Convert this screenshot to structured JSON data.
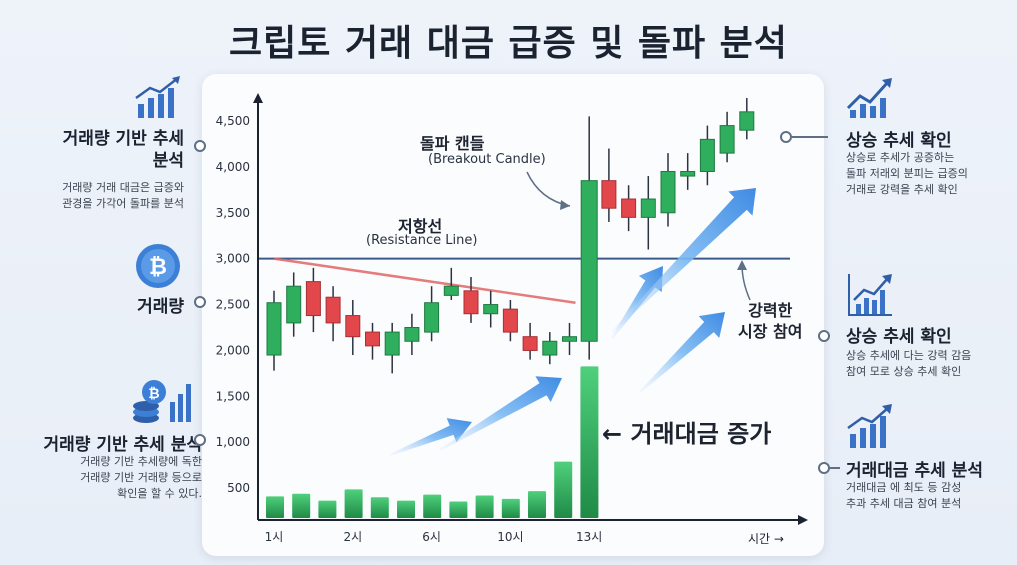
{
  "title": "크립토 거래 대금 급증 및 돌파 분석",
  "left": [
    {
      "title": "거래량 기반 추세\n분석",
      "desc": "거래량 거래 대금은 급증와\n관경을 가각어 돌파를 분석",
      "icon": "bar-chart-up-icon"
    },
    {
      "title": "거래량",
      "desc": "",
      "icon": "bitcoin-coin-icon"
    },
    {
      "title": "거래량 기반 추세 분석",
      "desc": "거래량 기반 추세량에 독한\n거래량 기반 거래량 등으로\n확인을 할 수 있다.",
      "icon": "coins-chart-icon"
    }
  ],
  "right": [
    {
      "title": "상승 추세 확인",
      "desc": "상승로 추세가 공증하는\n돌파 저래외 분피는 급증의\n거래로 강력을 추세 확인",
      "icon": "line-chart-up-icon"
    },
    {
      "title": "상승 추세 확인",
      "desc": "상승 추세에 다는 강력 감음\n참여 모로 상승 추세 확인",
      "icon": "line-chart-up-icon"
    },
    {
      "title": "거래대금 추세 분석",
      "desc": "거래대금 에 최도 등 감성\n추과 추세 대금 참여 분석",
      "icon": "bar-chart-up-icon"
    }
  ],
  "annotations": {
    "breakout_ko": "돌파 캔들",
    "breakout_en": "(Breakout Candle)",
    "resistance_ko": "저항선",
    "resistance_en": "(Resistance Line)",
    "participation": "강력한\n시장 참여",
    "volume_increase": "← 거래대금 증가",
    "time_axis": "시간 →"
  },
  "colors": {
    "up": "#2fae5e",
    "down": "#e2474b",
    "resistance": "#3a5a8c",
    "trendline": "#e06666",
    "arrow": "#3b8fe8"
  },
  "chart_data": {
    "type": "candlestick",
    "ylim": [
      0,
      4700
    ],
    "yticks": [
      500,
      1000,
      1500,
      2000,
      2500,
      3000,
      3500,
      4000,
      4500
    ],
    "xtick_labels": [
      "1시",
      "2시",
      "6시",
      "10시",
      "13시"
    ],
    "xtick_index": [
      0,
      4,
      8,
      12,
      16
    ],
    "resistance_level": 3000,
    "descending_trend": [
      3000,
      2520
    ],
    "candles": [
      {
        "o": 1950,
        "c": 2520,
        "h": 2650,
        "l": 1780,
        "up": true
      },
      {
        "o": 2300,
        "c": 2700,
        "h": 2850,
        "l": 2150,
        "up": true
      },
      {
        "o": 2750,
        "c": 2380,
        "h": 2900,
        "l": 2200,
        "up": false
      },
      {
        "o": 2580,
        "c": 2300,
        "h": 2700,
        "l": 2100,
        "up": false
      },
      {
        "o": 2380,
        "c": 2150,
        "h": 2550,
        "l": 1950,
        "up": false
      },
      {
        "o": 2200,
        "c": 2050,
        "h": 2300,
        "l": 1900,
        "up": false
      },
      {
        "o": 1950,
        "c": 2200,
        "h": 2300,
        "l": 1750,
        "up": true
      },
      {
        "o": 2100,
        "c": 2250,
        "h": 2400,
        "l": 1950,
        "up": true
      },
      {
        "o": 2200,
        "c": 2520,
        "h": 2700,
        "l": 2100,
        "up": true
      },
      {
        "o": 2600,
        "c": 2700,
        "h": 2900,
        "l": 2550,
        "up": true
      },
      {
        "o": 2650,
        "c": 2400,
        "h": 2800,
        "l": 2300,
        "up": false
      },
      {
        "o": 2400,
        "c": 2500,
        "h": 2650,
        "l": 2250,
        "up": true
      },
      {
        "o": 2450,
        "c": 2200,
        "h": 2550,
        "l": 2100,
        "up": false
      },
      {
        "o": 2150,
        "c": 2000,
        "h": 2300,
        "l": 1900,
        "up": false
      },
      {
        "o": 1950,
        "c": 2100,
        "h": 2200,
        "l": 1850,
        "up": true
      },
      {
        "o": 2100,
        "c": 2150,
        "h": 2300,
        "l": 1950,
        "up": true
      },
      {
        "o": 2100,
        "c": 3850,
        "h": 4550,
        "l": 1900,
        "up": true
      },
      {
        "o": 3850,
        "c": 3550,
        "h": 4200,
        "l": 3400,
        "up": false
      },
      {
        "o": 3650,
        "c": 3450,
        "h": 3800,
        "l": 3300,
        "up": false
      },
      {
        "o": 3450,
        "c": 3650,
        "h": 3900,
        "l": 3100,
        "up": true
      },
      {
        "o": 3500,
        "c": 3950,
        "h": 4150,
        "l": 3350,
        "up": true
      },
      {
        "o": 3900,
        "c": 3950,
        "h": 4150,
        "l": 3750,
        "up": true
      },
      {
        "o": 3950,
        "c": 4300,
        "h": 4450,
        "l": 3800,
        "up": true
      },
      {
        "o": 4150,
        "c": 4450,
        "h": 4600,
        "l": 4050,
        "up": true
      },
      {
        "o": 4400,
        "c": 4600,
        "h": 4750,
        "l": 4300,
        "up": true
      }
    ],
    "volume_max": 1800,
    "volumes": [
      250,
      280,
      200,
      330,
      240,
      200,
      270,
      190,
      260,
      220,
      310,
      650,
      1750
    ]
  }
}
